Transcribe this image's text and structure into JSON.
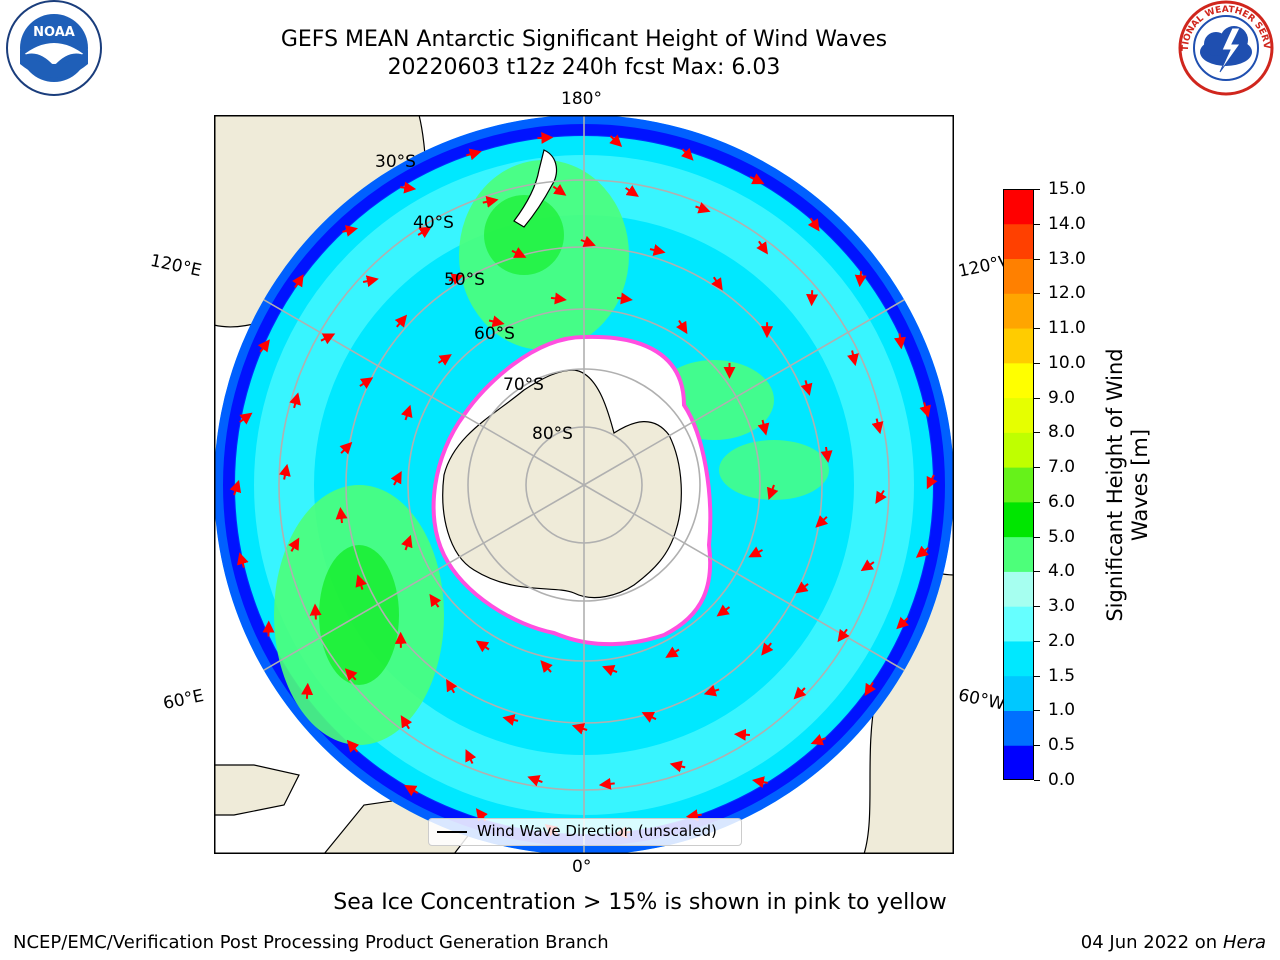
{
  "title": {
    "line1": "GEFS MEAN Antarctic Significant Height of Wind Waves",
    "line2": "20220603 t12z 240h fcst   Max: 6.03"
  },
  "logos": {
    "noaa_text": "NOAA",
    "nws_text": "NATIONAL WEATHER SERVICE"
  },
  "map": {
    "projection": "south-polar-stereographic",
    "longitude_labels": {
      "top": "180°",
      "bottom": "0°",
      "left_upper": "120°E",
      "left_lower": "60°E",
      "right_upper": "120°W",
      "right_lower": "60°W"
    },
    "latitude_labels": [
      "30°S",
      "40°S",
      "50°S",
      "60°S",
      "70°S",
      "80°S"
    ],
    "legend": "Wind Wave Direction (unscaled)",
    "colors": {
      "land": "#efebd9",
      "ice": "#ffffff",
      "ice_edge": "#ff4fe0",
      "arrow": "#ff0000",
      "grid": "#b0b0b0"
    }
  },
  "colorbar": {
    "label": "Significant Height of Wind Waves [m]",
    "ticks": [
      "0.0",
      "0.5",
      "1.0",
      "1.5",
      "2.0",
      "3.0",
      "4.0",
      "5.0",
      "6.0",
      "7.0",
      "8.0",
      "9.0",
      "10.0",
      "11.0",
      "12.0",
      "13.0",
      "14.0",
      "15.0"
    ],
    "colors": [
      "#0000ff",
      "#0070ff",
      "#00c8ff",
      "#00e8ff",
      "#66ffff",
      "#a6fff0",
      "#4dff7a",
      "#00e600",
      "#66f21a",
      "#bfff00",
      "#e6ff00",
      "#ffff00",
      "#ffcc00",
      "#ffa500",
      "#ff8000",
      "#ff4000",
      "#ff0000"
    ]
  },
  "note": "Sea Ice Concentration > 15% is shown in pink to yellow",
  "footer": {
    "left": "NCEP/EMC/Verification Post Processing Product Generation Branch",
    "right_date": "04 Jun 2022 on",
    "right_machine": "Hera"
  }
}
